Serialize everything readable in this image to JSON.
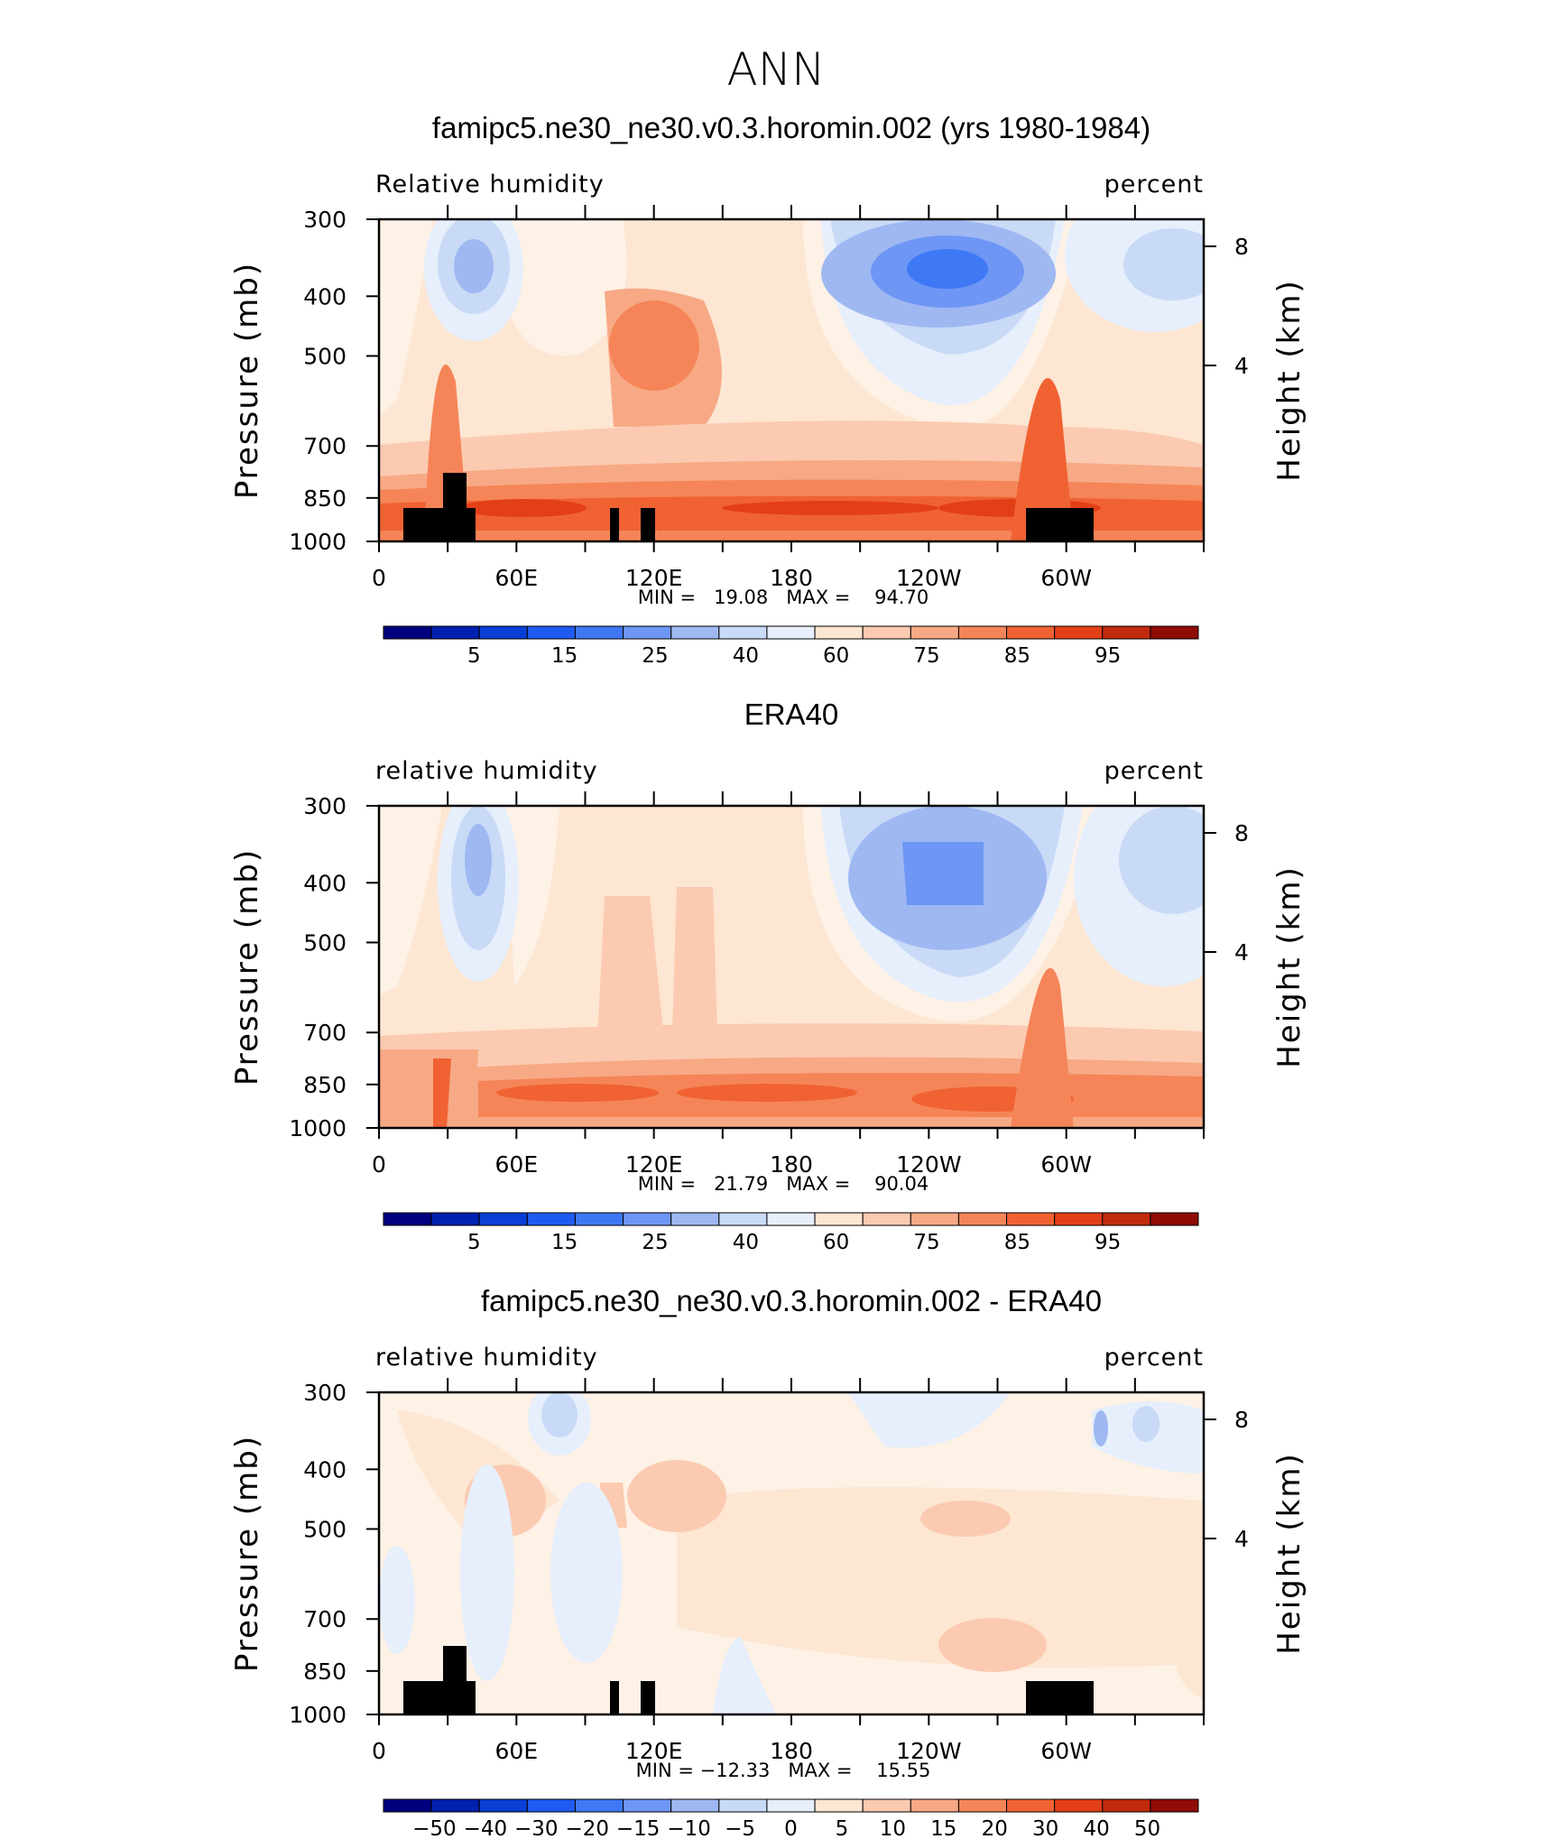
{
  "figure": {
    "title": "ANN"
  },
  "panels": [
    {
      "title": "famipc5.ne30_ne30.v0.3.horomin.002 (yrs 1980-1984)",
      "left_label": "Relative humidity",
      "right_label": "percent",
      "y_axis_title": "Pressure (mb)",
      "y2_axis_title": "Height (km)",
      "stats": "MIN =   19.08   MAX =    94.70",
      "colorbar_key": "rh"
    },
    {
      "title": "ERA40",
      "left_label": "relative humidity",
      "right_label": "percent",
      "y_axis_title": "Pressure (mb)",
      "y2_axis_title": "Height (km)",
      "stats": "MIN =   21.79   MAX =    90.04",
      "colorbar_key": "rh"
    },
    {
      "title": "famipc5.ne30_ne30.v0.3.horomin.002 - ERA40",
      "left_label": "relative humidity",
      "right_label": "percent",
      "y_axis_title": "Pressure (mb)",
      "y2_axis_title": "Height (km)",
      "stats": "MIN = −12.33   MAX =    15.55",
      "colorbar_key": "diff"
    }
  ],
  "chart_data": [
    {
      "type": "heatmap",
      "title": "famipc5.ne30_ne30.v0.3.horomin.002 (yrs 1980-1984)",
      "xlabel": "",
      "ylabel": "Pressure (mb)",
      "y2label": "Height (km)",
      "x_ticks": [
        "0",
        "60E",
        "120E",
        "180",
        "120W",
        "60W"
      ],
      "x_tick_values": [
        0,
        60,
        120,
        180,
        240,
        300
      ],
      "xlim": [
        0,
        360
      ],
      "y_ticks": [
        300,
        400,
        500,
        700,
        850,
        1000
      ],
      "ylim": [
        1000,
        300
      ],
      "y_scale": "log",
      "y2_ticks": [
        8,
        4
      ],
      "min": 19.08,
      "max": 94.7,
      "colorbar_levels": [
        "5",
        "15",
        "25",
        "40",
        "60",
        "75",
        "85",
        "95"
      ],
      "topography_mask": true
    },
    {
      "type": "heatmap",
      "title": "ERA40",
      "xlabel": "",
      "ylabel": "Pressure (mb)",
      "y2label": "Height (km)",
      "x_ticks": [
        "0",
        "60E",
        "120E",
        "180",
        "120W",
        "60W"
      ],
      "x_tick_values": [
        0,
        60,
        120,
        180,
        240,
        300
      ],
      "xlim": [
        0,
        360
      ],
      "y_ticks": [
        300,
        400,
        500,
        700,
        850,
        1000
      ],
      "ylim": [
        1000,
        300
      ],
      "y_scale": "log",
      "y2_ticks": [
        8,
        4
      ],
      "min": 21.79,
      "max": 90.04,
      "colorbar_levels": [
        "5",
        "15",
        "25",
        "40",
        "60",
        "75",
        "85",
        "95"
      ],
      "topography_mask": false
    },
    {
      "type": "heatmap",
      "title": "famipc5.ne30_ne30.v0.3.horomin.002 - ERA40",
      "xlabel": "",
      "ylabel": "Pressure (mb)",
      "y2label": "Height (km)",
      "x_ticks": [
        "0",
        "60E",
        "120E",
        "180",
        "120W",
        "60W"
      ],
      "x_tick_values": [
        0,
        60,
        120,
        180,
        240,
        300
      ],
      "xlim": [
        0,
        360
      ],
      "y_ticks": [
        300,
        400,
        500,
        700,
        850,
        1000
      ],
      "ylim": [
        1000,
        300
      ],
      "y_scale": "log",
      "y2_ticks": [
        8,
        4
      ],
      "min": -12.33,
      "max": 15.55,
      "colorbar_levels": [
        "−50",
        "−40",
        "−30",
        "−20",
        "−15",
        "−10",
        "−5",
        "0",
        "5",
        "10",
        "15",
        "20",
        "30",
        "40",
        "50"
      ],
      "topography_mask": true
    }
  ],
  "colorbars": {
    "rh": {
      "colors": [
        "#00007f",
        "#0020b0",
        "#0a3fd6",
        "#1f5bf0",
        "#3f78f5",
        "#6e96f5",
        "#9fb8f2",
        "#c9daf7",
        "#e6effb",
        "#fde6d2",
        "#fbcab0",
        "#f7a985",
        "#f58558",
        "#f06232",
        "#e33f16",
        "#c22a0c",
        "#8f0b05"
      ],
      "labels": [
        "5",
        "15",
        "25",
        "40",
        "60",
        "75",
        "85",
        "95"
      ]
    },
    "diff": {
      "colors": [
        "#00007f",
        "#0020b0",
        "#0a3fd6",
        "#1f5bf0",
        "#3f78f5",
        "#6e96f5",
        "#9fb8f2",
        "#c9daf7",
        "#e6effb",
        "#fde6d2",
        "#fbcab0",
        "#f7a985",
        "#f58558",
        "#f06232",
        "#e33f16",
        "#c22a0c",
        "#8f0b05"
      ],
      "labels": [
        "−50",
        "−40",
        "−30",
        "−20",
        "−15",
        "−10",
        "−5",
        "0",
        "5",
        "10",
        "15",
        "20",
        "30",
        "40",
        "50"
      ]
    }
  }
}
